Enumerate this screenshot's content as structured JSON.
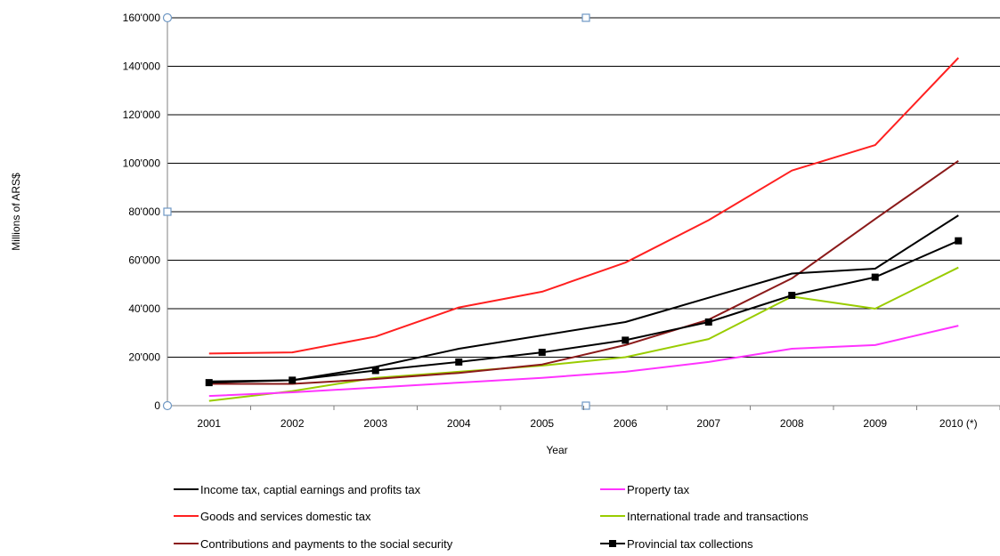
{
  "chart_data": {
    "type": "line",
    "xlabel": "Year",
    "ylabel": "Millions of ARS$",
    "ylim": [
      0,
      160000
    ],
    "y_ticks": [
      "0",
      "20'000",
      "40'000",
      "60'000",
      "80'000",
      "100'000",
      "120'000",
      "140'000",
      "160'000"
    ],
    "categories": [
      "2001",
      "2002",
      "2003",
      "2004",
      "2005",
      "2006",
      "2007",
      "2008",
      "2009",
      "2010 (*)"
    ],
    "grid": "horizontal",
    "legend_position": "bottom",
    "series": [
      {
        "name": "Income tax, captial earnings and profits tax",
        "color": "#000000",
        "marker": "none",
        "values": [
          10000,
          10500,
          16000,
          23500,
          29000,
          34500,
          44500,
          54500,
          56500,
          78500
        ]
      },
      {
        "name": "Goods and services domestic tax",
        "color": "#ff2020",
        "marker": "none",
        "values": [
          21500,
          22000,
          28500,
          40500,
          47000,
          59000,
          76500,
          97000,
          107500,
          143500
        ]
      },
      {
        "name": "Contributions and payments to the social security",
        "color": "#8b1a1a",
        "marker": "none",
        "values": [
          9000,
          9000,
          11000,
          13500,
          17000,
          25000,
          35500,
          52500,
          77000,
          101000
        ]
      },
      {
        "name": "Property tax",
        "color": "#ff33ff",
        "marker": "none",
        "values": [
          4000,
          5500,
          7500,
          9500,
          11500,
          14000,
          18000,
          23500,
          25000,
          33000
        ]
      },
      {
        "name": "International trade and transactions",
        "color": "#99cc00",
        "marker": "none",
        "values": [
          2000,
          6000,
          11500,
          14000,
          16500,
          20000,
          27500,
          45000,
          40000,
          57000
        ]
      },
      {
        "name": "Provincial tax collections",
        "color": "#000000",
        "marker": "square",
        "values": [
          9500,
          10500,
          14500,
          18000,
          22000,
          27000,
          34500,
          45500,
          53000,
          68000
        ]
      }
    ]
  }
}
